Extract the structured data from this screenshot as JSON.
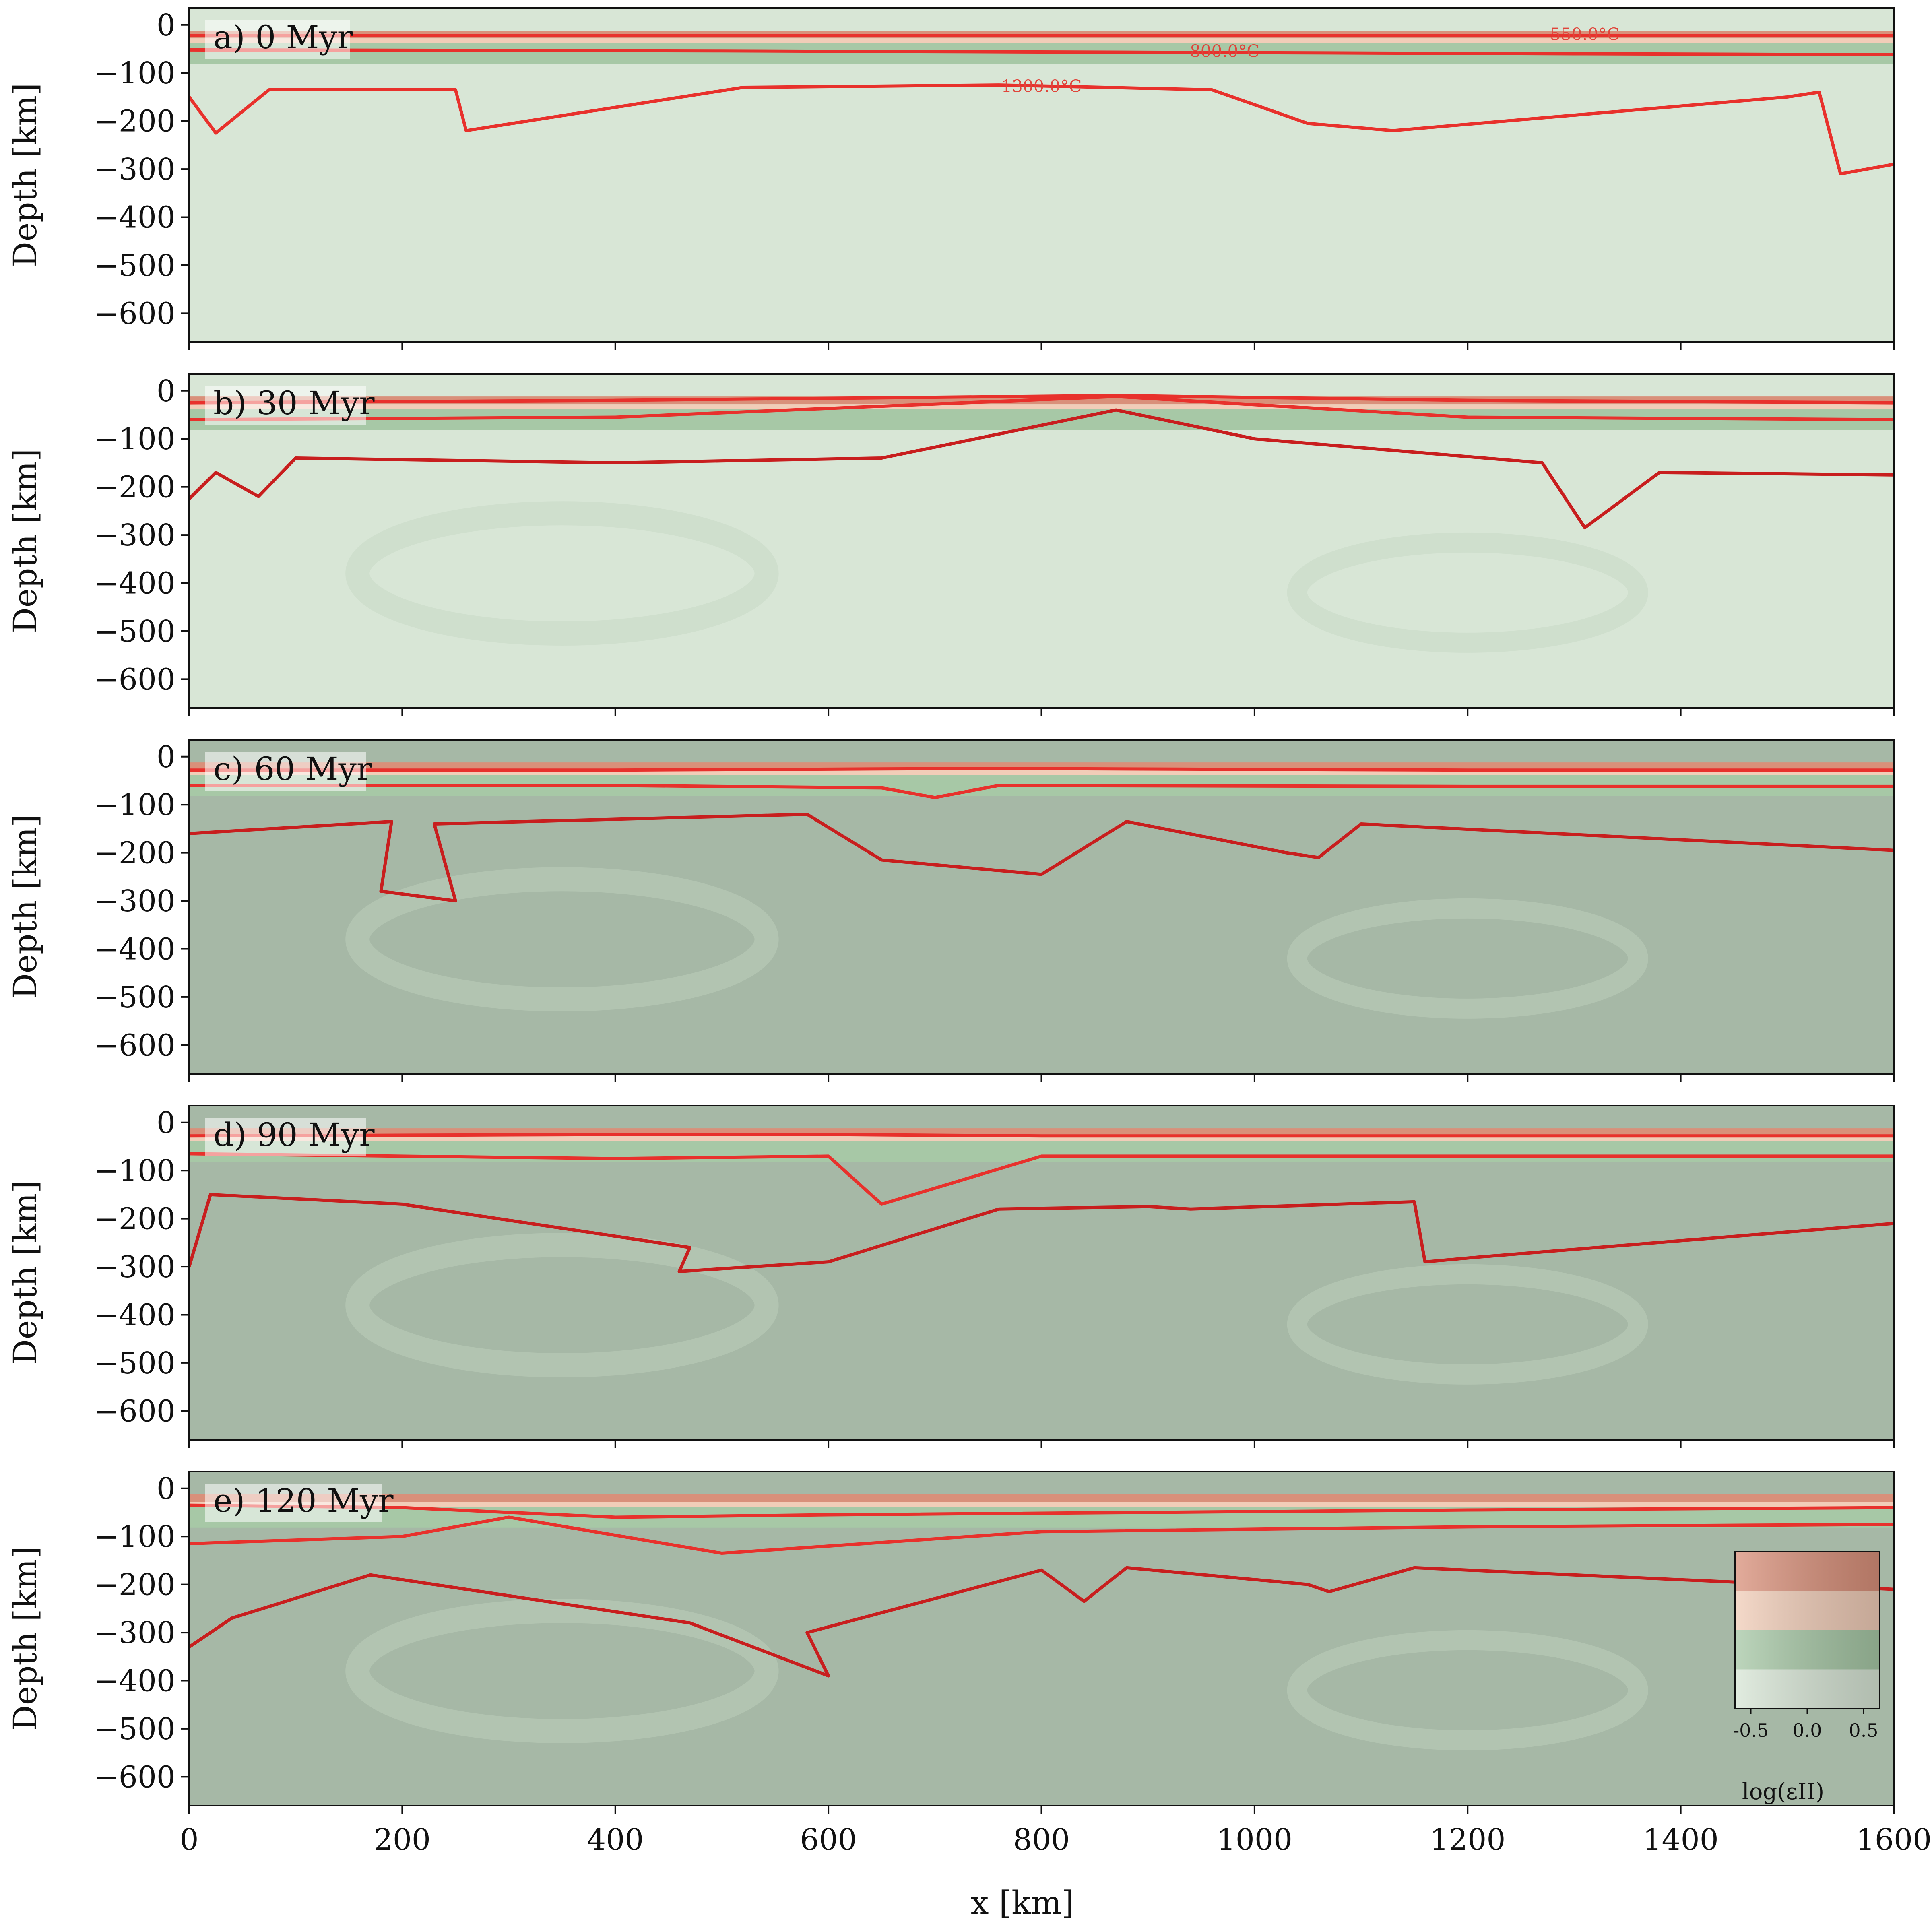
{
  "chart_data": {
    "type": "area",
    "xlabel": "x [km]",
    "ylabel": "Depth [km]",
    "xlim": [
      0,
      1600
    ],
    "ylim": [
      -660,
      35
    ],
    "x_ticks": [
      0,
      200,
      400,
      600,
      800,
      1000,
      1200,
      1400,
      1600
    ],
    "y_ticks": [
      0,
      -100,
      -200,
      -300,
      -400,
      -500,
      -600
    ],
    "x_tick_labels": [
      "0",
      "200",
      "400",
      "600",
      "800",
      "1000",
      "1200",
      "1400",
      "1600"
    ],
    "y_tick_labels": [
      "0",
      "−100",
      "−200",
      "−300",
      "−400",
      "−500",
      "−600"
    ],
    "colors": {
      "isotherm": "#e8312c",
      "upper_crust": "#d9907a",
      "lower_crust": "#f1cdb8",
      "lithospheric_mantle": "#a7c8a6",
      "asthenosphere_light": "#d8e6d6",
      "asthenosphere_dark": "#a6b8a6"
    },
    "isotherm_labels": [
      {
        "text": "550.0°C",
        "x": 1310,
        "y": -20
      },
      {
        "text": "800.0°C",
        "x": 972,
        "y": -55
      },
      {
        "text": "1300.0°C",
        "x": 800,
        "y": -128
      }
    ],
    "panels": [
      {
        "label": "a) 0 Myr",
        "time_myr": 0,
        "isotherms": [
          {
            "name": "550.0°C",
            "x": [
              0,
              400,
              800,
              1200,
              1600
            ],
            "y": [
              -22,
              -22,
              -22,
              -22,
              -22
            ]
          },
          {
            "name": "800.0°C",
            "x": [
              0,
              500,
              900,
              1300,
              1600
            ],
            "y": [
              -52,
              -54,
              -57,
              -60,
              -62
            ]
          },
          {
            "name": "1300.0°C",
            "x": [
              0,
              25,
              75,
              250,
              260,
              520,
              760,
              960,
              1050,
              1130,
              1500,
              1530,
              1550,
              1600
            ],
            "y": [
              -150,
              -225,
              -135,
              -135,
              -220,
              -130,
              -125,
              -135,
              -205,
              -220,
              -150,
              -140,
              -310,
              -290
            ]
          }
        ]
      },
      {
        "label": "b) 30 Myr",
        "time_myr": 30,
        "isotherms": [
          {
            "name": "550.0°C",
            "x": [
              0,
              400,
              870,
              1200,
              1600
            ],
            "y": [
              -25,
              -20,
              -10,
              -20,
              -25
            ]
          },
          {
            "name": "800.0°C",
            "x": [
              0,
              400,
              870,
              1200,
              1600
            ],
            "y": [
              -60,
              -55,
              -12,
              -55,
              -60
            ]
          },
          {
            "name": "1300.0°C",
            "x": [
              0,
              25,
              65,
              100,
              400,
              650,
              870,
              1000,
              1270,
              1310,
              1380,
              1600
            ],
            "y": [
              -225,
              -170,
              -220,
              -140,
              -150,
              -140,
              -40,
              -100,
              -150,
              -285,
              -170,
              -175
            ]
          }
        ]
      },
      {
        "label": "c) 60 Myr",
        "time_myr": 60,
        "isotherms": [
          {
            "name": "550.0°C",
            "x": [
              0,
              400,
              700,
              800,
              1200,
              1600
            ],
            "y": [
              -28,
              -28,
              -25,
              -25,
              -28,
              -28
            ]
          },
          {
            "name": "800.0°C",
            "x": [
              0,
              400,
              650,
              700,
              760,
              1200,
              1600
            ],
            "y": [
              -60,
              -60,
              -65,
              -85,
              -60,
              -62,
              -62
            ]
          },
          {
            "name": "1300.0°C",
            "x": [
              0,
              190,
              180,
              250,
              230,
              580,
              650,
              800,
              880,
              1030,
              1060,
              1100,
              1600
            ],
            "y": [
              -160,
              -135,
              -280,
              -300,
              -140,
              -120,
              -215,
              -245,
              -135,
              -200,
              -210,
              -140,
              -195
            ]
          }
        ]
      },
      {
        "label": "d) 90 Myr",
        "time_myr": 90,
        "isotherms": [
          {
            "name": "550.0°C",
            "x": [
              0,
              400,
              600,
              800,
              1200,
              1600
            ],
            "y": [
              -28,
              -25,
              -25,
              -28,
              -28,
              -28
            ]
          },
          {
            "name": "800.0°C",
            "x": [
              0,
              400,
              600,
              650,
              800,
              1200,
              1600
            ],
            "y": [
              -65,
              -75,
              -70,
              -170,
              -70,
              -70,
              -70
            ]
          },
          {
            "name": "1300.0°C",
            "x": [
              0,
              20,
              200,
              470,
              460,
              600,
              760,
              900,
              940,
              1150,
              1160,
              1210,
              1600
            ],
            "y": [
              -300,
              -150,
              -170,
              -260,
              -310,
              -290,
              -180,
              -175,
              -180,
              -165,
              -290,
              -280,
              -210
            ]
          }
        ]
      },
      {
        "label": "e) 120 Myr",
        "time_myr": 120,
        "isotherms": [
          {
            "name": "550.0°C",
            "x": [
              0,
              200,
              400,
              600,
              1200,
              1600
            ],
            "y": [
              -35,
              -40,
              -60,
              -55,
              -45,
              -40
            ]
          },
          {
            "name": "800.0°C",
            "x": [
              0,
              200,
              300,
              500,
              800,
              1200,
              1600
            ],
            "y": [
              -115,
              -100,
              -60,
              -135,
              -90,
              -80,
              -75
            ]
          },
          {
            "name": "1300.0°C",
            "x": [
              0,
              40,
              170,
              470,
              600,
              580,
              800,
              840,
              880,
              1050,
              1070,
              1150,
              1600
            ],
            "y": [
              -330,
              -270,
              -180,
              -280,
              -390,
              -300,
              -170,
              -235,
              -165,
              -200,
              -215,
              -165,
              -210
            ]
          }
        ]
      }
    ],
    "legend": {
      "title": "log(εII)",
      "ticks": [
        "-0.5",
        "0.0",
        "0.5"
      ],
      "location": "lower-right of panel e",
      "row_colors": [
        "#d9907a",
        "#f1cdb8",
        "#a7c8a6",
        "#d8e6d6"
      ]
    }
  }
}
